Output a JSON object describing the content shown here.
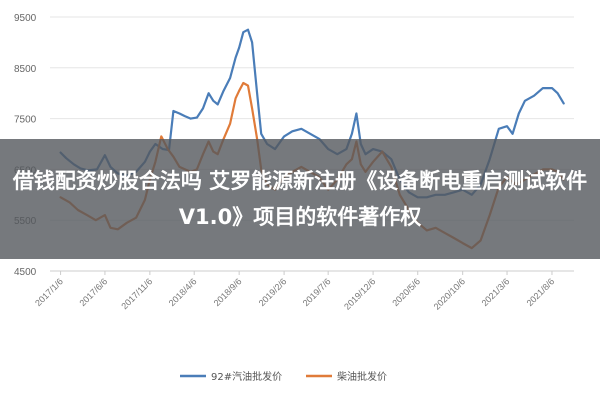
{
  "headline": "借钱配资炒股合法吗 艾罗能源新注册《设备断电重启测试软件V1.0》项目的软件著作权",
  "colors": {
    "diesel": "#4a7db8",
    "gasoline": "#e07b39",
    "grid": "#e6e6e6",
    "overlay": "#54585c"
  },
  "chart_data": {
    "type": "line",
    "title": "",
    "xlabel": "",
    "ylabel": "",
    "ylim": [
      4500,
      9500
    ],
    "yticks": [
      4500,
      5500,
      6500,
      7500,
      8500,
      9500
    ],
    "xlim": [
      "2016-12-01",
      "2021-10-20"
    ],
    "xticks": [
      "2017/1/6",
      "2017/6/6",
      "2017/11/6",
      "2018/4/6",
      "2018/9/6",
      "2019/2/6",
      "2019/7/6",
      "2019/12/6",
      "2020/5/6",
      "2020/10/6",
      "2021/3/6",
      "2021/8/6"
    ],
    "grid": true,
    "legend_position": "bottom",
    "series": [
      {
        "name": "92#汽油批发价",
        "color": "#4a7db8",
        "points": [
          [
            "2017-01-06",
            6830
          ],
          [
            "2017-01-25",
            6720
          ],
          [
            "2017-02-20",
            6600
          ],
          [
            "2017-03-15",
            6520
          ],
          [
            "2017-04-10",
            6480
          ],
          [
            "2017-05-10",
            6500
          ],
          [
            "2017-06-06",
            6780
          ],
          [
            "2017-06-25",
            6550
          ],
          [
            "2017-07-20",
            6420
          ],
          [
            "2017-08-20",
            6380
          ],
          [
            "2017-09-20",
            6450
          ],
          [
            "2017-10-20",
            6650
          ],
          [
            "2017-11-06",
            6850
          ],
          [
            "2017-11-25",
            7000
          ],
          [
            "2017-12-20",
            6900
          ],
          [
            "2018-01-10",
            6880
          ],
          [
            "2018-01-25",
            7650
          ],
          [
            "2018-02-15",
            7600
          ],
          [
            "2018-03-05",
            7550
          ],
          [
            "2018-03-25",
            7500
          ],
          [
            "2018-04-15",
            7520
          ],
          [
            "2018-05-06",
            7700
          ],
          [
            "2018-05-25",
            8000
          ],
          [
            "2018-06-10",
            7850
          ],
          [
            "2018-06-25",
            7780
          ],
          [
            "2018-07-15",
            8050
          ],
          [
            "2018-08-06",
            8300
          ],
          [
            "2018-08-25",
            8700
          ],
          [
            "2018-09-06",
            8900
          ],
          [
            "2018-09-20",
            9200
          ],
          [
            "2018-10-06",
            9250
          ],
          [
            "2018-10-20",
            9000
          ],
          [
            "2018-11-06",
            8000
          ],
          [
            "2018-11-20",
            7200
          ],
          [
            "2018-12-10",
            7000
          ],
          [
            "2019-01-06",
            6900
          ],
          [
            "2019-02-06",
            7150
          ],
          [
            "2019-03-06",
            7250
          ],
          [
            "2019-04-06",
            7300
          ],
          [
            "2019-05-06",
            7200
          ],
          [
            "2019-06-06",
            7100
          ],
          [
            "2019-07-06",
            6900
          ],
          [
            "2019-08-06",
            6800
          ],
          [
            "2019-09-06",
            6900
          ],
          [
            "2019-09-25",
            7200
          ],
          [
            "2019-10-10",
            7600
          ],
          [
            "2019-10-25",
            7000
          ],
          [
            "2019-11-10",
            6800
          ],
          [
            "2019-12-06",
            6900
          ],
          [
            "2020-01-06",
            6850
          ],
          [
            "2020-02-06",
            6700
          ],
          [
            "2020-03-06",
            6300
          ],
          [
            "2020-04-06",
            6050
          ],
          [
            "2020-05-06",
            5950
          ],
          [
            "2020-06-06",
            5950
          ],
          [
            "2020-07-06",
            6000
          ],
          [
            "2020-08-06",
            6000
          ],
          [
            "2020-09-06",
            6050
          ],
          [
            "2020-10-06",
            6100
          ],
          [
            "2020-11-06",
            6000
          ],
          [
            "2020-12-06",
            6200
          ],
          [
            "2021-01-06",
            6700
          ],
          [
            "2021-02-06",
            7300
          ],
          [
            "2021-03-06",
            7350
          ],
          [
            "2021-03-25",
            7200
          ],
          [
            "2021-04-15",
            7600
          ],
          [
            "2021-05-06",
            7850
          ],
          [
            "2021-06-06",
            7950
          ],
          [
            "2021-07-06",
            8100
          ],
          [
            "2021-08-06",
            8100
          ],
          [
            "2021-08-25",
            8000
          ],
          [
            "2021-09-15",
            7800
          ]
        ]
      },
      {
        "name": "柴油批发价",
        "color": "#e07b39",
        "points": [
          [
            "2017-01-06",
            5950
          ],
          [
            "2017-02-06",
            5850
          ],
          [
            "2017-03-06",
            5700
          ],
          [
            "2017-04-06",
            5600
          ],
          [
            "2017-05-06",
            5500
          ],
          [
            "2017-06-06",
            5600
          ],
          [
            "2017-06-25",
            5350
          ],
          [
            "2017-07-20",
            5320
          ],
          [
            "2017-08-20",
            5450
          ],
          [
            "2017-09-20",
            5550
          ],
          [
            "2017-10-20",
            5900
          ],
          [
            "2017-11-06",
            6300
          ],
          [
            "2017-11-25",
            6650
          ],
          [
            "2017-12-15",
            7150
          ],
          [
            "2018-01-06",
            6900
          ],
          [
            "2018-01-25",
            6750
          ],
          [
            "2018-02-15",
            6550
          ],
          [
            "2018-03-06",
            6500
          ],
          [
            "2018-03-25",
            6450
          ],
          [
            "2018-04-15",
            6500
          ],
          [
            "2018-05-06",
            6800
          ],
          [
            "2018-05-25",
            7050
          ],
          [
            "2018-06-10",
            6850
          ],
          [
            "2018-06-25",
            6800
          ],
          [
            "2018-07-15",
            7100
          ],
          [
            "2018-08-06",
            7400
          ],
          [
            "2018-08-25",
            7900
          ],
          [
            "2018-09-06",
            8050
          ],
          [
            "2018-09-20",
            8200
          ],
          [
            "2018-10-06",
            8150
          ],
          [
            "2018-10-20",
            7700
          ],
          [
            "2018-11-06",
            7100
          ],
          [
            "2018-11-20",
            6500
          ],
          [
            "2018-12-10",
            6200
          ],
          [
            "2019-01-06",
            6100
          ],
          [
            "2019-02-06",
            6350
          ],
          [
            "2019-03-06",
            6450
          ],
          [
            "2019-04-06",
            6550
          ],
          [
            "2019-05-06",
            6450
          ],
          [
            "2019-06-06",
            6350
          ],
          [
            "2019-07-06",
            6100
          ],
          [
            "2019-08-06",
            6300
          ],
          [
            "2019-09-06",
            6600
          ],
          [
            "2019-09-25",
            6700
          ],
          [
            "2019-10-10",
            7050
          ],
          [
            "2019-10-25",
            6600
          ],
          [
            "2019-11-10",
            6450
          ],
          [
            "2019-12-06",
            6650
          ],
          [
            "2020-01-06",
            6850
          ],
          [
            "2020-02-06",
            6550
          ],
          [
            "2020-03-06",
            6000
          ],
          [
            "2020-04-06",
            5700
          ],
          [
            "2020-05-06",
            5450
          ],
          [
            "2020-06-06",
            5300
          ],
          [
            "2020-07-06",
            5350
          ],
          [
            "2020-08-06",
            5250
          ],
          [
            "2020-09-06",
            5150
          ],
          [
            "2020-10-06",
            5050
          ],
          [
            "2020-11-06",
            4950
          ],
          [
            "2020-12-06",
            5100
          ],
          [
            "2021-01-06",
            5600
          ],
          [
            "2021-02-06",
            6150
          ],
          [
            "2021-03-06",
            6350
          ],
          [
            "2021-04-06",
            6200
          ],
          [
            "2021-05-06",
            6300
          ],
          [
            "2021-06-06",
            6400
          ],
          [
            "2021-07-06",
            6500
          ],
          [
            "2021-08-06",
            6500
          ],
          [
            "2021-08-25",
            6450
          ],
          [
            "2021-09-15",
            6300
          ]
        ]
      }
    ]
  }
}
